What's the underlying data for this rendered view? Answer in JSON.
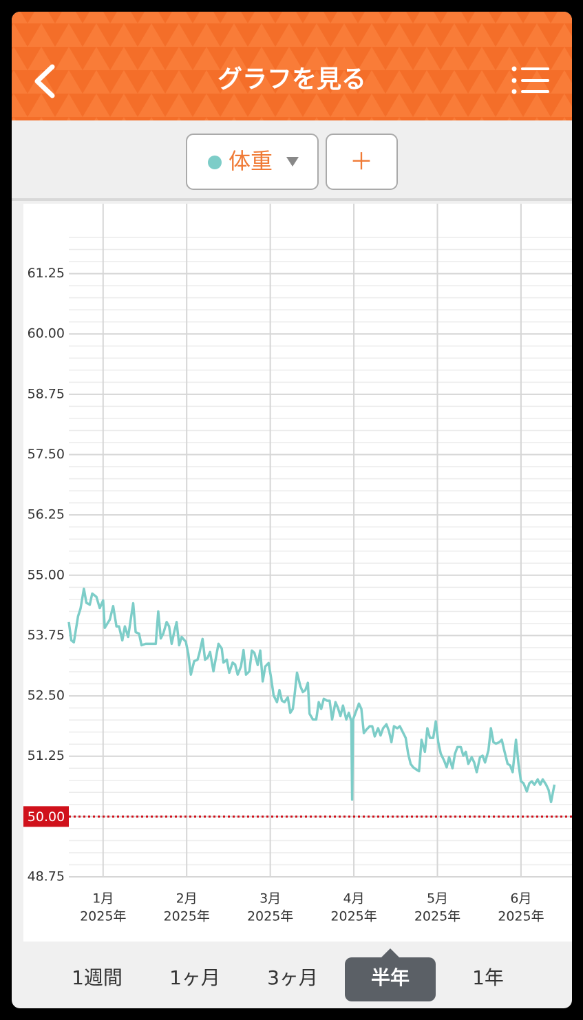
{
  "header": {
    "title": "グラフを見る"
  },
  "toolbar": {
    "add": "＋"
  },
  "chart_data": {
    "type": "line",
    "series": [
      {
        "name": "体重",
        "color": "#7dcdc8",
        "x": [
          0.59,
          0.62,
          0.65,
          0.7,
          0.73,
          0.77,
          0.8,
          0.84,
          0.87,
          0.92,
          0.96,
          1.0,
          1.02,
          1.08,
          1.12,
          1.16,
          1.19,
          1.23,
          1.26,
          1.3,
          1.33,
          1.36,
          1.39,
          1.43,
          1.46,
          1.51,
          1.63,
          1.66,
          1.69,
          1.72,
          1.76,
          1.79,
          1.82,
          1.85,
          1.88,
          1.91,
          1.94,
          1.99,
          2.02,
          2.05,
          2.09,
          2.13,
          2.15,
          2.19,
          2.22,
          2.25,
          2.28,
          2.32,
          2.35,
          2.38,
          2.42,
          2.44,
          2.48,
          2.51,
          2.55,
          2.58,
          2.61,
          2.65,
          2.68,
          2.71,
          2.75,
          2.78,
          2.81,
          2.85,
          2.88,
          2.91,
          2.94,
          2.98,
          3.01,
          3.04,
          3.08,
          3.11,
          3.14,
          3.17,
          3.21,
          3.24,
          3.27,
          3.29,
          3.32,
          3.36,
          3.39,
          3.42,
          3.45,
          3.47,
          3.51,
          3.55,
          3.58,
          3.61,
          3.64,
          3.68,
          3.71,
          3.74,
          3.78,
          3.81,
          3.84,
          3.87,
          3.91,
          3.94,
          3.97,
          3.98,
          3.99,
          4.02,
          4.06,
          4.09,
          4.12,
          4.15,
          4.19,
          4.22,
          4.25,
          4.29,
          4.32,
          4.35,
          4.39,
          4.42,
          4.45,
          4.48,
          4.52,
          4.55,
          4.58,
          4.62,
          4.65,
          4.68,
          4.71,
          4.75,
          4.78,
          4.81,
          4.85,
          4.88,
          4.91,
          4.95,
          4.98,
          5.01,
          5.04,
          5.08,
          5.11,
          5.14,
          5.18,
          5.21,
          5.24,
          5.28,
          5.31,
          5.34,
          5.37,
          5.41,
          5.44,
          5.47,
          5.51,
          5.54,
          5.57,
          5.61,
          5.64,
          5.67,
          5.7,
          5.74,
          5.77,
          5.8,
          5.84,
          5.87,
          5.9,
          5.94,
          5.97,
          6.0,
          6.03,
          6.07,
          6.1,
          6.13,
          6.16,
          6.2,
          6.23,
          6.26,
          6.3,
          6.33,
          6.36,
          6.4
        ],
        "values": [
          54.03,
          53.65,
          53.61,
          54.15,
          54.31,
          54.72,
          54.43,
          54.39,
          54.62,
          54.55,
          54.32,
          54.48,
          53.91,
          54.08,
          54.36,
          53.94,
          53.94,
          53.65,
          53.94,
          53.72,
          54.08,
          54.42,
          53.82,
          53.79,
          53.55,
          53.58,
          53.58,
          54.25,
          53.69,
          53.79,
          54.03,
          53.94,
          53.58,
          53.82,
          54.03,
          53.55,
          53.72,
          53.62,
          53.37,
          52.94,
          53.22,
          53.25,
          53.37,
          53.68,
          53.25,
          53.29,
          53.41,
          53.01,
          53.29,
          53.58,
          53.48,
          53.19,
          53.25,
          52.98,
          53.19,
          53.15,
          52.94,
          53.11,
          53.45,
          52.94,
          53.01,
          53.44,
          53.39,
          53.14,
          53.44,
          52.8,
          53.11,
          53.18,
          52.87,
          52.51,
          52.37,
          52.62,
          52.4,
          52.37,
          52.47,
          52.15,
          52.23,
          52.51,
          52.98,
          52.7,
          52.58,
          52.62,
          52.77,
          52.13,
          52.01,
          52.01,
          52.37,
          52.23,
          52.44,
          52.4,
          52.4,
          52.01,
          52.37,
          52.25,
          52.08,
          52.3,
          52.01,
          52.15,
          51.97,
          50.35,
          52.01,
          52.15,
          52.34,
          52.23,
          51.73,
          51.8,
          51.87,
          51.87,
          51.66,
          51.83,
          51.68,
          51.83,
          51.91,
          51.77,
          51.54,
          51.87,
          51.83,
          51.87,
          51.77,
          51.63,
          51.3,
          51.09,
          51.02,
          50.97,
          50.94,
          51.59,
          51.34,
          51.83,
          51.63,
          51.63,
          51.97,
          51.54,
          51.3,
          51.16,
          51.02,
          51.23,
          51.0,
          51.3,
          51.44,
          51.44,
          51.26,
          51.34,
          51.09,
          51.23,
          51.12,
          50.92,
          51.23,
          51.26,
          51.12,
          51.37,
          51.83,
          51.54,
          51.51,
          51.54,
          51.59,
          51.37,
          51.09,
          51.06,
          50.92,
          51.59,
          51.09,
          50.73,
          50.69,
          50.52,
          50.69,
          50.73,
          50.66,
          50.77,
          50.66,
          50.77,
          50.66,
          50.55,
          50.3,
          50.66
        ]
      }
    ],
    "xlim": [
      0.59,
      6.61
    ],
    "xticks": [
      {
        "value": 1,
        "label": "1月",
        "year": "2025年"
      },
      {
        "value": 2,
        "label": "2月",
        "year": "2025年"
      },
      {
        "value": 3,
        "label": "3月",
        "year": "2025年"
      },
      {
        "value": 4,
        "label": "4月",
        "year": "2025年"
      },
      {
        "value": 5,
        "label": "5月",
        "year": "2025年"
      },
      {
        "value": 6,
        "label": "6月",
        "year": "2025年"
      }
    ],
    "ylim": [
      48.75,
      62
    ],
    "yticks": [
      48.75,
      {
        "value": 50,
        "label": "50.00"
      },
      51.25,
      {
        "value": 52.5,
        "label": "52.50"
      },
      53.75,
      {
        "value": 55,
        "label": "55.00"
      },
      56.25,
      {
        "value": 57.5,
        "label": "57.50"
      },
      58.75,
      {
        "value": 60,
        "label": "60.00"
      },
      61.25
    ],
    "minor_grid_step": 0.25,
    "grid": true,
    "target": {
      "value": 50,
      "label": "50.00",
      "color": "#d0111b"
    }
  },
  "tabs": {
    "items": [
      "1週間",
      "1ヶ月",
      "3ヶ月",
      "半年",
      "1年"
    ],
    "selected": 3
  }
}
